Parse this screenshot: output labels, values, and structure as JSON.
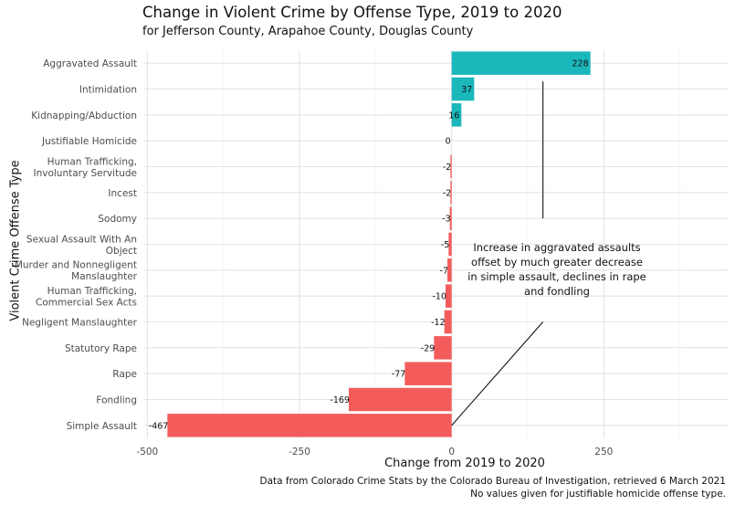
{
  "chart_data": {
    "type": "bar",
    "orientation": "horizontal",
    "title": "Change in Violent Crime by Offense Type, 2019 to 2020",
    "subtitle": "for Jefferson County, Arapahoe County, Douglas County",
    "xlabel": "Change from 2019 to 2020",
    "ylabel": "Violent Crime Offense Type",
    "xlim": [
      -505,
      455
    ],
    "xticks": [
      -500,
      -250,
      0,
      250
    ],
    "xtick_labels": [
      "-500",
      "-250",
      "0",
      "250"
    ],
    "grid": true,
    "legend": "none",
    "categories": [
      [
        "Aggravated Assault"
      ],
      [
        "Intimidation"
      ],
      [
        "Kidnapping/Abduction"
      ],
      [
        "Justifiable Homicide"
      ],
      [
        "Human Trafficking,",
        "Involuntary Servitude"
      ],
      [
        "Incest"
      ],
      [
        "Sodomy"
      ],
      [
        "Sexual Assault With An",
        "Object"
      ],
      [
        "Murder and Nonnegligent",
        "Manslaughter"
      ],
      [
        "Human Trafficking,",
        "Commercial Sex Acts"
      ],
      [
        "Negligent Manslaughter"
      ],
      [
        "Statutory Rape"
      ],
      [
        "Rape"
      ],
      [
        "Fondling"
      ],
      [
        "Simple Assault"
      ]
    ],
    "values": [
      228,
      37,
      16,
      0,
      -2,
      -2,
      -3,
      -5,
      -7,
      -10,
      -12,
      -29,
      -77,
      -169,
      -467
    ],
    "colors": {
      "positive": "#1ab7bb",
      "negative": "#f45c5c"
    },
    "annotation": "Increase in aggravated assaults offset by much greater decrease in simple assault, declines in rape and fondling",
    "caption": [
      "Data from Colorado Crime Stats by the Colorado Bureau of Investigation, retrieved 6 March 2021",
      "No values given for justifiable homicide offense type."
    ]
  }
}
